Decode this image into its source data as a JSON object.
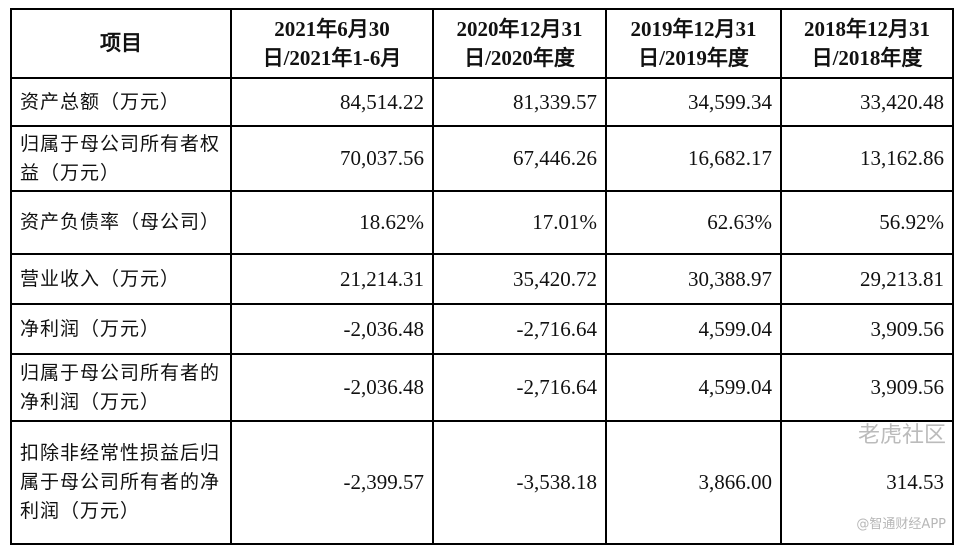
{
  "headers": [
    "项目",
    "2021年6月30日/2021年1-6月",
    "2020年12月31日/2020年度",
    "2019年12月31日/2019年度",
    "2018年12月31日/2018年度"
  ],
  "rows": [
    {
      "label": "资产总额（万元）",
      "values": [
        "84,514.22",
        "81,339.57",
        "34,599.34",
        "33,420.48"
      ]
    },
    {
      "label": "归属于母公司所有者权益（万元）",
      "values": [
        "70,037.56",
        "67,446.26",
        "16,682.17",
        "13,162.86"
      ]
    },
    {
      "label": "资产负债率（母公司）",
      "values": [
        "18.62%",
        "17.01%",
        "62.63%",
        "56.92%"
      ]
    },
    {
      "label": "营业收入（万元）",
      "values": [
        "21,214.31",
        "35,420.72",
        "30,388.97",
        "29,213.81"
      ]
    },
    {
      "label": "净利润（万元）",
      "values": [
        "-2,036.48",
        "-2,716.64",
        "4,599.04",
        "3,909.56"
      ]
    },
    {
      "label": "归属于母公司所有者的净利润（万元）",
      "values": [
        "-2,036.48",
        "-2,716.64",
        "4,599.04",
        "3,909.56"
      ]
    },
    {
      "label": "扣除非经常性损益后归属于母公司所有者的净利润（万元）",
      "values": [
        "-2,399.57",
        "-3,538.18",
        "3,866.00",
        "314.53"
      ]
    }
  ],
  "watermark": {
    "brand": "老虎社区",
    "source": "@智通财经APP"
  }
}
